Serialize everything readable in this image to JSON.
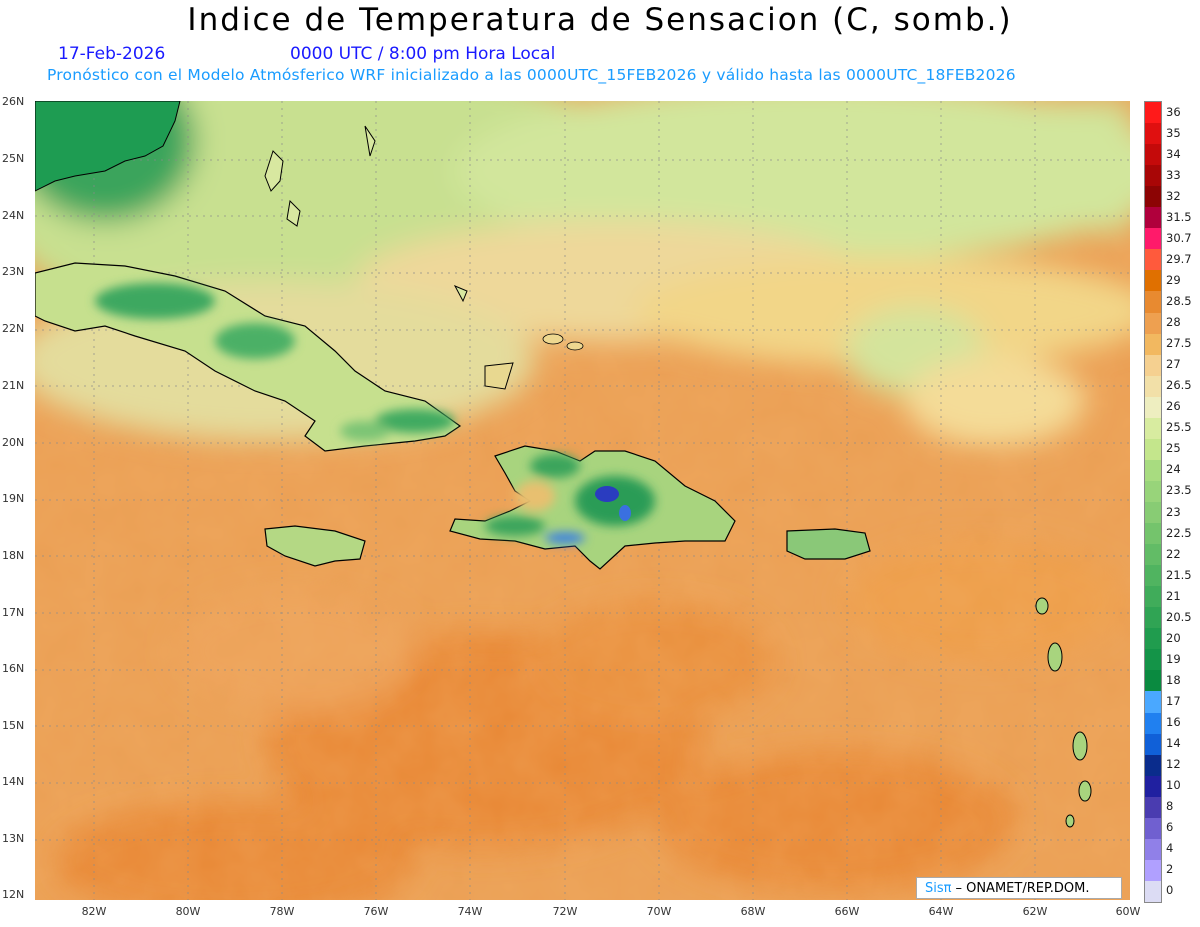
{
  "header": {
    "title": "Indice de Temperatura de Sensacion (C, somb.)",
    "date": "17-Feb-2026",
    "time": "0000 UTC / 8:00 pm Hora Local",
    "subtitle": "Pronóstico con el Modelo Atmósferico WRF inicializado a las 0000UTC_15FEB2026 y válido hasta las  0000UTC_18FEB2026"
  },
  "map": {
    "lat_labels": [
      "26N",
      "25N",
      "24N",
      "23N",
      "22N",
      "21N",
      "20N",
      "19N",
      "18N",
      "17N",
      "16N",
      "15N",
      "14N",
      "13N",
      "12N"
    ],
    "lon_labels": [
      "82W",
      "80W",
      "78W",
      "76W",
      "74W",
      "72W",
      "70W",
      "68W",
      "66W",
      "64W",
      "62W",
      "60W"
    ]
  },
  "colorbar": {
    "levels": [
      "36",
      "35",
      "34",
      "33",
      "32",
      "31.5",
      "30.7",
      "29.7",
      "29",
      "28.5",
      "28",
      "27.5",
      "27",
      "26.5",
      "26",
      "25.5",
      "25",
      "24",
      "23.5",
      "23",
      "22.5",
      "22",
      "21.5",
      "21",
      "20.5",
      "20",
      "19",
      "18",
      "17",
      "16",
      "14",
      "12",
      "10",
      "8",
      "6",
      "4",
      "2",
      "0"
    ],
    "colors": [
      "#ff1a1a",
      "#e01010",
      "#c40a0a",
      "#a80606",
      "#8c0404",
      "#b0003c",
      "#ff1a6a",
      "#ff5a3c",
      "#e07000",
      "#e88a30",
      "#eea050",
      "#f2b860",
      "#f5d090",
      "#f2e0a8",
      "#eeeec0",
      "#d8eca0",
      "#c4e68c",
      "#a8dc80",
      "#98d47a",
      "#88cc74",
      "#74c46c",
      "#62bc66",
      "#50b460",
      "#40ac5a",
      "#30a454",
      "#209c4e",
      "#149448",
      "#0a8a40",
      "#4aa8ff",
      "#2080f0",
      "#1060d8",
      "#0a2c8c",
      "#2020a0",
      "#4a3cb0",
      "#7060d0",
      "#9080e8",
      "#b0a0ff",
      "#dcdcf4"
    ]
  },
  "credit": {
    "logo": "Sisπ",
    "text": "– ONAMET/REP.DOM."
  }
}
